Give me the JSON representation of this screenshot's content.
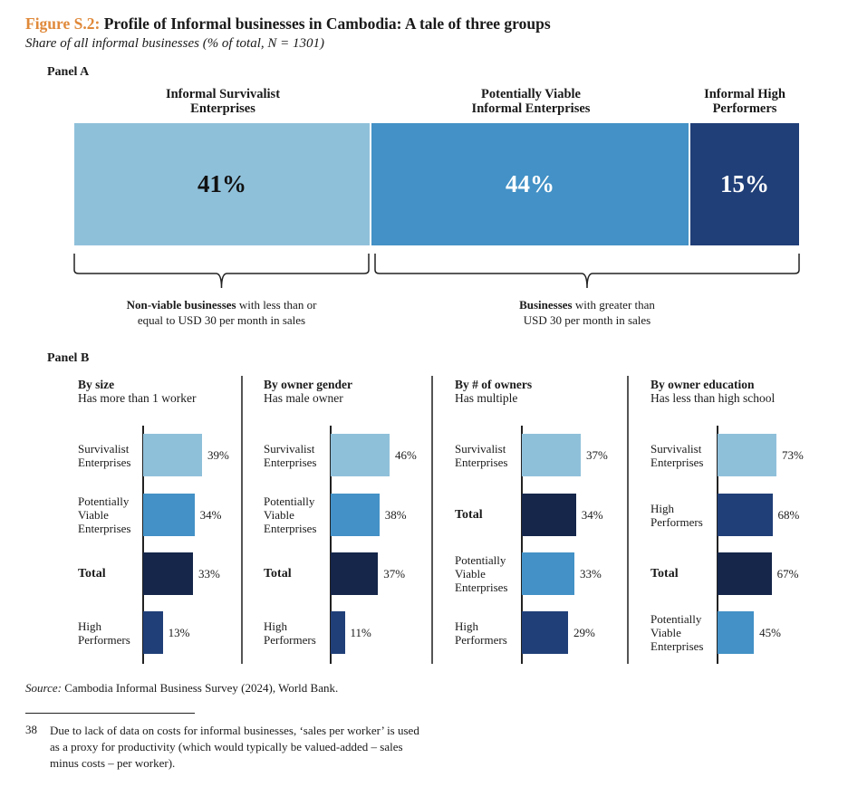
{
  "header": {
    "figure_label": "Figure S.2:",
    "title": " Profile of Informal businesses in Cambodia: A tale of three groups",
    "subtitle": "Share of all informal businesses (% of total, N = 1301)"
  },
  "colors": {
    "survivalist": "#8fc0da",
    "viable": "#4391c6",
    "high": "#203f78",
    "total": "#15264a",
    "title_accent": "#e0893a"
  },
  "chart_data": [
    {
      "type": "bar",
      "orientation": "horizontal-stacked",
      "panel": "Panel A",
      "categories": [
        "Informal Survivalist Enterprises",
        "Potentially Viable Informal Enterprises",
        "Informal High Performers"
      ],
      "values": [
        41,
        44,
        15
      ],
      "value_labels": [
        "41%",
        "44%",
        "15%"
      ],
      "category_lines": [
        [
          "Informal Survivalist",
          "Enterprises"
        ],
        [
          "Potentially Viable",
          "Informal Enterprises"
        ],
        [
          "Informal High",
          "Performers"
        ]
      ],
      "brackets": [
        {
          "bold": "Non-viable businesses",
          "text": " with less than or",
          "line2": "equal to USD 30 per month in sales",
          "covers": [
            "Informal Survivalist Enterprises"
          ]
        },
        {
          "bold": "Businesses",
          "text": " with greater than",
          "line2": "USD 30 per month in sales",
          "covers": [
            "Potentially Viable Informal Enterprises",
            "Informal High Performers"
          ]
        }
      ],
      "unit": "%"
    },
    {
      "type": "bar",
      "orientation": "horizontal",
      "panel": "Panel B",
      "title": "By size",
      "subtitle": "Has more than 1 worker",
      "categories": [
        "Survivalist Enterprises",
        "Potentially Viable Enterprises",
        "Total",
        "High Performers"
      ],
      "category_lines": [
        [
          "Survivalist",
          "Enterprises"
        ],
        [
          "Potentially",
          "Viable",
          "Enterprises"
        ],
        [
          "Total"
        ],
        [
          "High",
          "Performers"
        ]
      ],
      "groups": [
        "survivalist",
        "viable",
        "total",
        "high"
      ],
      "values": [
        39,
        34,
        33,
        13
      ],
      "unit": "%"
    },
    {
      "type": "bar",
      "orientation": "horizontal",
      "panel": "Panel B",
      "title": "By owner gender",
      "subtitle": "Has male owner",
      "categories": [
        "Survivalist Enterprises",
        "Potentially Viable Enterprises",
        "Total",
        "High Performers"
      ],
      "category_lines": [
        [
          "Survivalist",
          "Enterprises"
        ],
        [
          "Potentially",
          "Viable",
          "Enterprises"
        ],
        [
          "Total"
        ],
        [
          "High",
          "Performers"
        ]
      ],
      "groups": [
        "survivalist",
        "viable",
        "total",
        "high"
      ],
      "values": [
        46,
        38,
        37,
        11
      ],
      "unit": "%"
    },
    {
      "type": "bar",
      "orientation": "horizontal",
      "panel": "Panel B",
      "title": "By # of owners",
      "subtitle": "Has multiple",
      "categories": [
        "Survivalist Enterprises",
        "Total",
        "Potentially Viable Enterprises",
        "High Performers"
      ],
      "category_lines": [
        [
          "Survivalist",
          "Enterprises"
        ],
        [
          "Total"
        ],
        [
          "Potentially",
          "Viable",
          "Enterprises"
        ],
        [
          "High",
          "Performers"
        ]
      ],
      "groups": [
        "survivalist",
        "total",
        "viable",
        "high"
      ],
      "values": [
        37,
        34,
        33,
        29
      ],
      "unit": "%"
    },
    {
      "type": "bar",
      "orientation": "horizontal",
      "panel": "Panel B",
      "title": "By owner education",
      "subtitle": "Has less than high school",
      "categories": [
        "Survivalist Enterprises",
        "High Performers",
        "Total",
        "Potentially Viable Enterprises"
      ],
      "category_lines": [
        [
          "Survivalist",
          "Enterprises"
        ],
        [
          "High",
          "Performers"
        ],
        [
          "Total"
        ],
        [
          "Potentially",
          "Viable",
          "Enterprises"
        ]
      ],
      "groups": [
        "survivalist",
        "high",
        "total",
        "viable"
      ],
      "values": [
        73,
        68,
        67,
        45
      ],
      "unit": "%"
    }
  ],
  "labels": {
    "panel_a": "Panel A",
    "panel_b": "Panel B"
  },
  "footer": {
    "source_label": "Source:",
    "source_text": " Cambodia Informal Business Survey (2024), World Bank.",
    "footnote_number": "38",
    "footnote_text": "Due to lack of data on costs for informal businesses, ‘sales per worker’ is used as a proxy for productivity (which would typically be valued-added – sales minus costs – per worker)."
  }
}
